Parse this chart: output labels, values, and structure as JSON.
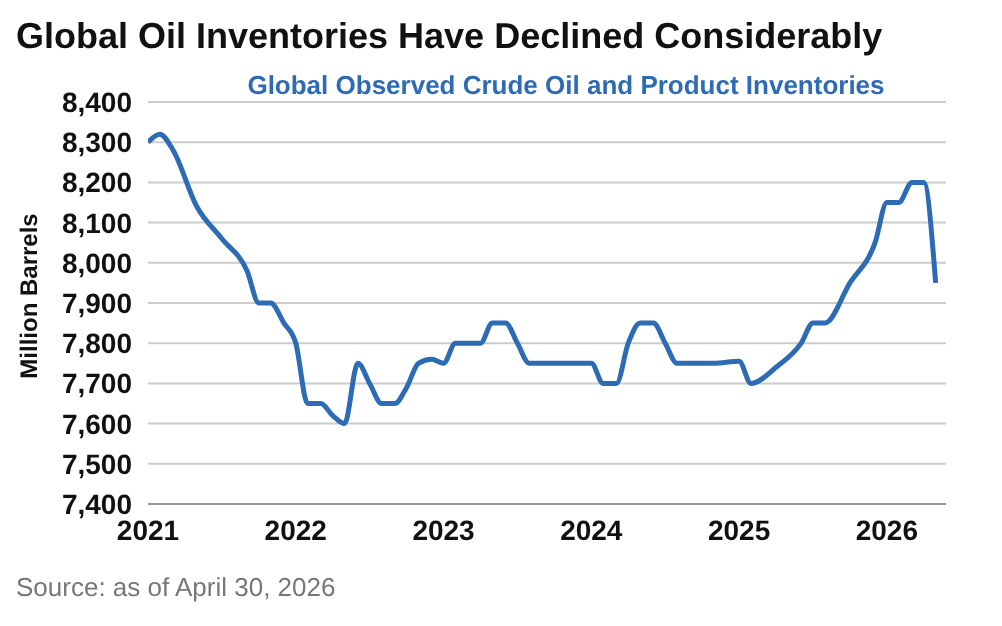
{
  "chart_data": {
    "type": "line",
    "title": "Global Oil Inventories Have Declined Considerably",
    "subtitle": "Global Observed Crude Oil and Product Inventories",
    "ylabel": "Million Barrels",
    "annotations": [
      "Source: as of April 30, 2026"
    ],
    "x": [
      2021.0,
      2021.08,
      2021.17,
      2021.33,
      2021.5,
      2021.67,
      2021.75,
      2021.83,
      2021.92,
      2022.0,
      2022.08,
      2022.17,
      2022.25,
      2022.33,
      2022.42,
      2022.5,
      2022.58,
      2022.67,
      2022.75,
      2022.83,
      2022.92,
      2023.0,
      2023.08,
      2023.17,
      2023.25,
      2023.33,
      2023.42,
      2023.5,
      2023.58,
      2023.67,
      2023.83,
      2024.0,
      2024.08,
      2024.17,
      2024.25,
      2024.33,
      2024.42,
      2024.5,
      2024.58,
      2024.67,
      2024.83,
      2025.0,
      2025.08,
      2025.25,
      2025.42,
      2025.5,
      2025.58,
      2025.75,
      2025.92,
      2026.0,
      2026.08,
      2026.17,
      2026.25,
      2026.33
    ],
    "series": [
      {
        "color": "#2e6bb5",
        "values": [
          8300,
          8320,
          8280,
          8140,
          8060,
          7980,
          7900,
          7900,
          7850,
          7800,
          7650,
          7650,
          7620,
          7600,
          7750,
          7700,
          7650,
          7650,
          7690,
          7750,
          7760,
          7750,
          7800,
          7800,
          7800,
          7850,
          7850,
          7800,
          7750,
          7750,
          7750,
          7750,
          7700,
          7700,
          7800,
          7850,
          7850,
          7800,
          7750,
          7750,
          7750,
          7755,
          7700,
          7740,
          7800,
          7850,
          7850,
          7950,
          8050,
          8150,
          8150,
          8200,
          8200,
          7950
        ]
      }
    ],
    "xlim": [
      2021,
      2026.4
    ],
    "xticks": [
      2021,
      2022,
      2023,
      2024,
      2025,
      2026
    ],
    "ylim": [
      7400,
      8400
    ],
    "yticks": [
      {
        "value": 7400,
        "label": "7,400"
      },
      {
        "value": 7500,
        "label": "7,500"
      },
      {
        "value": 7600,
        "label": "7,600"
      },
      {
        "value": 7700,
        "label": "7,700"
      },
      {
        "value": 7800,
        "label": "7,800"
      },
      {
        "value": 7900,
        "label": "7,900"
      },
      {
        "value": 8000,
        "label": "8,000"
      },
      {
        "value": 8100,
        "label": "8,100"
      },
      {
        "value": 8200,
        "label": "8,200"
      },
      {
        "value": 8300,
        "label": "8,300"
      },
      {
        "value": 8400,
        "label": "8,400"
      }
    ],
    "grid": "y",
    "legend": false,
    "marker": "none",
    "line_style": "solid"
  }
}
